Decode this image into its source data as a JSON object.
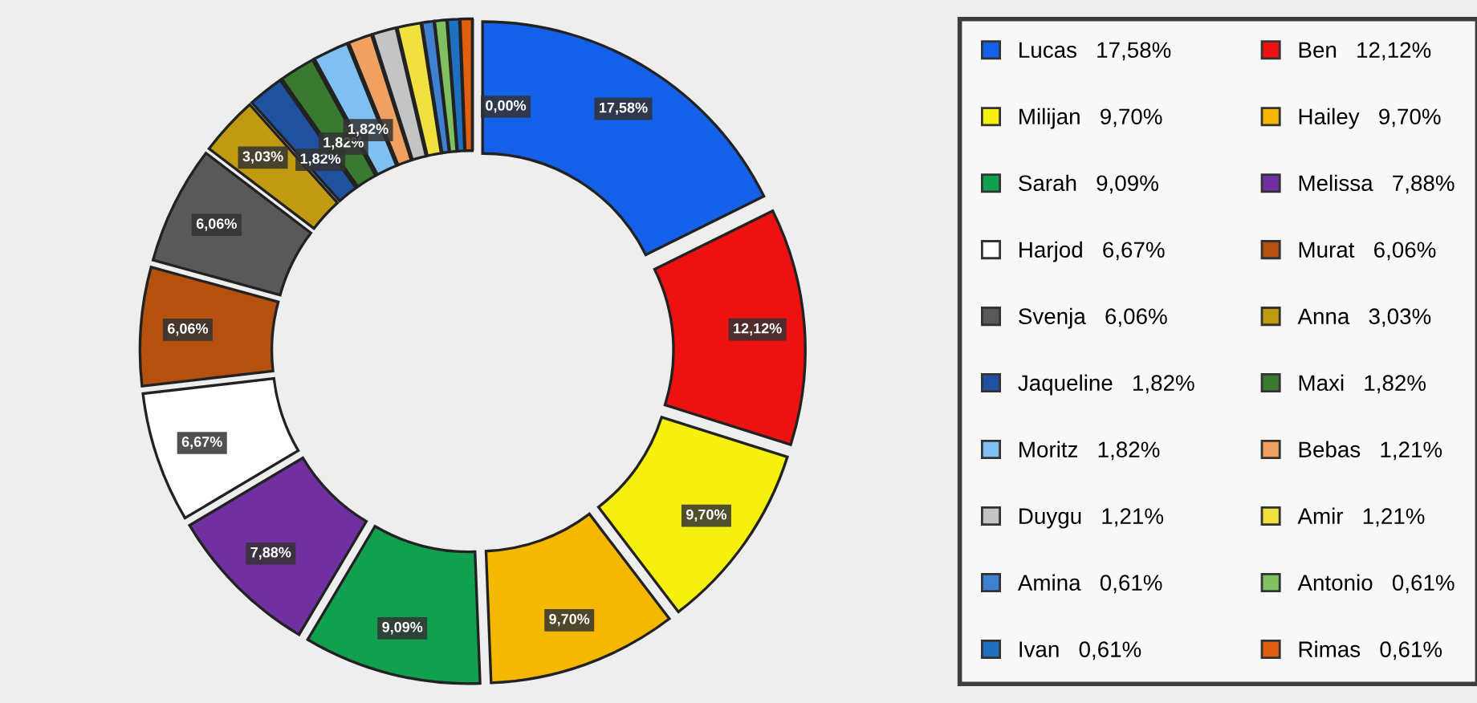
{
  "chart_data": {
    "type": "donut",
    "categories": [
      "Lucas",
      "Ben",
      "Milijan",
      "Hailey",
      "Sarah",
      "Melissa",
      "Harjod",
      "Murat",
      "Svenja",
      "Anna",
      "Jaqueline",
      "Maxi",
      "Moritz",
      "Bebas",
      "Duygu",
      "Amir",
      "Amina",
      "Antonio",
      "Ivan",
      "Rimas",
      null
    ],
    "values": [
      17.58,
      12.12,
      9.7,
      9.7,
      9.09,
      7.88,
      6.67,
      6.06,
      6.06,
      3.03,
      1.82,
      1.82,
      1.82,
      1.21,
      1.21,
      1.21,
      0.61,
      0.61,
      0.61,
      0.61,
      0
    ],
    "value_labels": [
      "17,58%",
      "12,12%",
      "9,70%",
      "9,70%",
      "9,09%",
      "7,88%",
      "6,67%",
      "6,06%",
      "6,06%",
      "3,03%",
      "1,82%",
      "1,82%",
      "1,82%",
      "1,21%",
      "1,21%",
      "1,21%",
      "0,61%",
      "0,61%",
      "0,61%",
      "0,61%",
      "0,00%"
    ],
    "colors": [
      "#1560e8",
      "#ee1111",
      "#f5f010",
      "#f5b800",
      "#10a050",
      "#7030a0",
      "#ffffff",
      "#b5500f",
      "#595959",
      "#c09a10",
      "#2050a0",
      "#3a7a30",
      "#80c0f0",
      "#f0a060",
      "#c4c4c4",
      "#f0e040",
      "#4080d0",
      "#80c060",
      "#2070c0",
      "#e06010",
      "#808080"
    ],
    "legend": "right"
  }
}
